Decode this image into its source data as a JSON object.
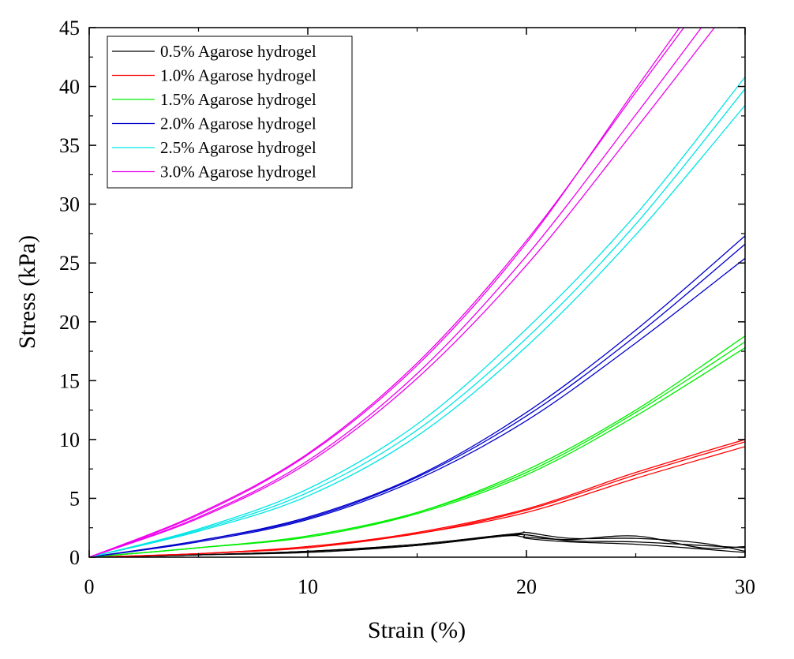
{
  "chart_data": {
    "type": "line",
    "title": "",
    "xlabel": "Strain (%)",
    "ylabel": "Stress (kPa)",
    "xlim": [
      0,
      30
    ],
    "ylim": [
      0,
      45
    ],
    "xticks": [
      0,
      10,
      20,
      30
    ],
    "yticks": [
      0,
      5,
      10,
      15,
      20,
      25,
      30,
      35,
      40,
      45
    ],
    "grid": false,
    "legend_position": "top-left",
    "series": [
      {
        "name": "0.5% Agarose hydrogel",
        "color": "#000000",
        "replicates": [
          {
            "x": [
              0,
              5,
              10,
              15,
              19,
              20,
              22,
              25,
              28,
              30
            ],
            "y": [
              0,
              0.2,
              0.5,
              1.1,
              1.9,
              1.9,
              1.4,
              1.3,
              1.0,
              0.8
            ]
          },
          {
            "x": [
              0,
              5,
              10,
              15,
              19.5,
              20,
              22,
              25,
              28,
              30
            ],
            "y": [
              0,
              0.2,
              0.5,
              1.1,
              2.0,
              2.1,
              1.6,
              1.6,
              1.2,
              0.5
            ]
          },
          {
            "x": [
              0,
              5,
              10,
              15,
              19,
              20,
              22,
              25,
              28,
              30
            ],
            "y": [
              0,
              0.2,
              0.5,
              1.0,
              1.8,
              1.7,
              1.5,
              1.8,
              0.8,
              0.9
            ]
          },
          {
            "x": [
              0,
              5,
              10,
              15,
              19.5,
              20,
              22,
              25,
              28,
              30
            ],
            "y": [
              0,
              0.2,
              0.4,
              1.0,
              1.9,
              1.6,
              1.3,
              1.1,
              0.7,
              0.4
            ]
          }
        ]
      },
      {
        "name": "1.0% Agarose hydrogel",
        "color": "#ff0000",
        "replicates": [
          {
            "x": [
              0,
              5,
              10,
              15,
              20,
              25,
              30
            ],
            "y": [
              0,
              0.3,
              0.9,
              2.1,
              4.1,
              7.2,
              10.0
            ]
          },
          {
            "x": [
              0,
              5,
              10,
              15,
              20,
              25,
              30
            ],
            "y": [
              0,
              0.3,
              0.9,
              2.0,
              4.0,
              7.0,
              9.8
            ]
          },
          {
            "x": [
              0,
              5,
              10,
              15,
              20,
              25,
              30
            ],
            "y": [
              0,
              0.3,
              0.8,
              2.0,
              3.8,
              6.7,
              9.4
            ]
          }
        ]
      },
      {
        "name": "1.5% Agarose hydrogel",
        "color": "#00ee00",
        "replicates": [
          {
            "x": [
              0,
              5,
              10,
              15,
              20,
              25,
              30
            ],
            "y": [
              0,
              0.8,
              1.8,
              3.8,
              7.4,
              12.5,
              18.8
            ]
          },
          {
            "x": [
              0,
              5,
              10,
              15,
              20,
              25,
              30
            ],
            "y": [
              0,
              0.8,
              1.8,
              3.8,
              7.2,
              12.3,
              18.3
            ]
          },
          {
            "x": [
              0,
              5,
              10,
              15,
              20,
              25,
              30
            ],
            "y": [
              0,
              0.8,
              1.7,
              3.7,
              7.0,
              12.0,
              17.8
            ]
          }
        ]
      },
      {
        "name": "2.0% Agarose hydrogel",
        "color": "#0000cc",
        "replicates": [
          {
            "x": [
              0,
              5,
              10,
              15,
              20,
              25,
              30
            ],
            "y": [
              0,
              1.4,
              3.4,
              6.9,
              12.3,
              19.3,
              27.3
            ]
          },
          {
            "x": [
              0,
              5,
              10,
              15,
              20,
              25,
              30
            ],
            "y": [
              0,
              1.4,
              3.3,
              6.8,
              12.0,
              18.8,
              26.6
            ]
          },
          {
            "x": [
              0,
              5,
              10,
              15,
              20,
              25,
              30
            ],
            "y": [
              0,
              1.3,
              3.2,
              6.6,
              11.6,
              18.2,
              25.4
            ]
          }
        ]
      },
      {
        "name": "2.5% Agarose hydrogel",
        "color": "#00e5e5",
        "replicates": [
          {
            "x": [
              0,
              5,
              10,
              15,
              20,
              25,
              30
            ],
            "y": [
              0,
              2.4,
              5.8,
              11.3,
              19.4,
              29.1,
              40.8
            ]
          },
          {
            "x": [
              0,
              5,
              10,
              15,
              20,
              25,
              30
            ],
            "y": [
              0,
              2.3,
              5.5,
              10.8,
              18.6,
              28.3,
              39.8
            ]
          },
          {
            "x": [
              0,
              5,
              10,
              15,
              20,
              25,
              30
            ],
            "y": [
              0,
              2.2,
              5.2,
              10.3,
              17.9,
              27.4,
              38.4
            ]
          }
        ]
      },
      {
        "name": "3.0% Agarose hydrogel",
        "color": "#ee00ee",
        "replicates": [
          {
            "x": [
              0,
              5,
              10,
              15,
              20,
              25,
              27.2
            ],
            "y": [
              0,
              3.7,
              8.8,
              16.5,
              26.9,
              39.5,
              45
            ]
          },
          {
            "x": [
              0,
              5,
              10,
              15,
              20,
              25,
              27.0
            ],
            "y": [
              0,
              3.6,
              8.7,
              16.3,
              26.7,
              39.8,
              45
            ]
          },
          {
            "x": [
              0,
              5,
              10,
              15,
              20,
              25,
              28.0
            ],
            "y": [
              0,
              3.4,
              8.2,
              15.6,
              25.6,
              37.6,
              45
            ]
          },
          {
            "x": [
              0,
              5,
              10,
              15,
              20,
              25,
              28.6
            ],
            "y": [
              0,
              3.3,
              8.0,
              15.2,
              24.8,
              36.4,
              45
            ]
          }
        ]
      }
    ]
  }
}
